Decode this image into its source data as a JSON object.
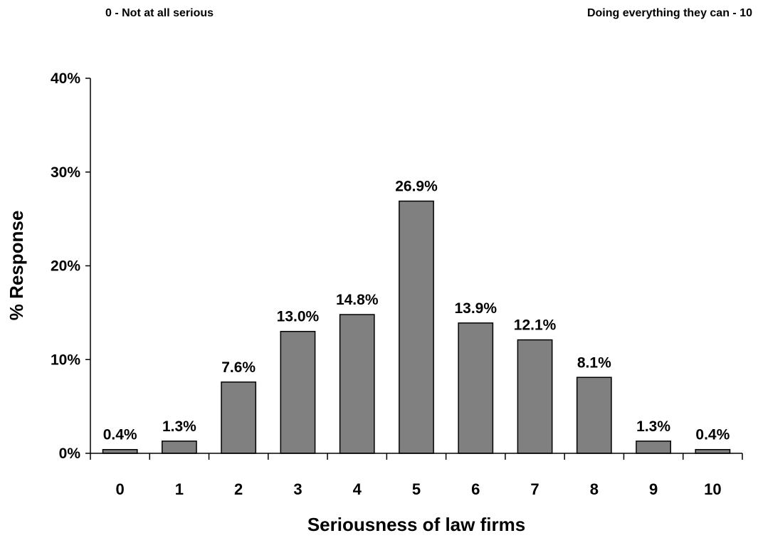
{
  "scale_labels": {
    "left": "0 - Not at all serious",
    "right": "Doing everything they can - 10"
  },
  "chart_data": {
    "type": "bar",
    "title": "",
    "xlabel": "Seriousness of law firms",
    "ylabel": "% Response",
    "categories": [
      "0",
      "1",
      "2",
      "3",
      "4",
      "5",
      "6",
      "7",
      "8",
      "9",
      "10"
    ],
    "values": [
      0.4,
      1.3,
      7.6,
      13.0,
      14.8,
      26.9,
      13.9,
      12.1,
      8.1,
      1.3,
      0.4
    ],
    "data_labels": [
      "0.4%",
      "1.3%",
      "7.6%",
      "13.0%",
      "14.8%",
      "26.9%",
      "13.9%",
      "12.1%",
      "8.1%",
      "1.3%",
      "0.4%"
    ],
    "ylim": [
      0,
      40
    ],
    "yticks": [
      0,
      10,
      20,
      30,
      40
    ],
    "ytick_labels": [
      "0%",
      "10%",
      "20%",
      "30%",
      "40%"
    ],
    "grid": false,
    "legend": "none",
    "bar_color": "#808080",
    "bar_edge_color": "#000000"
  }
}
